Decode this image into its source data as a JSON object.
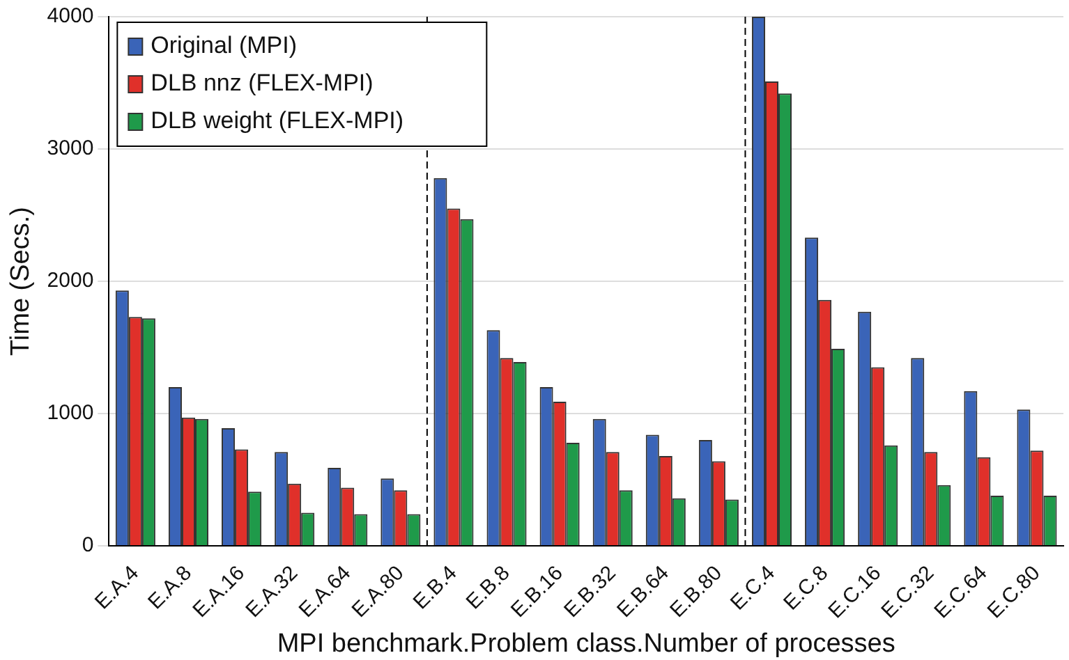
{
  "chart_data": {
    "type": "bar",
    "xlabel": "MPI benchmark.Problem class.Number of processes",
    "ylabel": "Time (Secs.)",
    "categories": [
      "E.A.4",
      "E.A.8",
      "E.A.16",
      "E.A.32",
      "E.A.64",
      "E.A.80",
      "E.B.4",
      "E.B.8",
      "E.B.16",
      "E.B.32",
      "E.B.64",
      "E.B.80",
      "E.C.4",
      "E.C.8",
      "E.C.16",
      "E.C.32",
      "E.C.64",
      "E.C.80"
    ],
    "series": [
      {
        "name": "Original (MPI)",
        "color": "#3a64b8",
        "values": [
          1930,
          1200,
          890,
          710,
          590,
          510,
          2780,
          1630,
          1200,
          960,
          840,
          800,
          4000,
          2330,
          1770,
          1420,
          1170,
          1030
        ]
      },
      {
        "name": "DLB nnz (FLEX-MPI)",
        "color": "#e0302a",
        "values": [
          1730,
          970,
          730,
          470,
          440,
          420,
          2550,
          1420,
          1090,
          710,
          680,
          640,
          3510,
          1860,
          1350,
          710,
          670,
          720
        ]
      },
      {
        "name": "DLB weight (FLEX-MPI)",
        "color": "#1f9a4a",
        "values": [
          1720,
          960,
          410,
          250,
          240,
          240,
          2470,
          1390,
          780,
          420,
          360,
          350,
          3420,
          1490,
          760,
          460,
          380,
          380
        ]
      }
    ],
    "ylim": [
      0,
      4000
    ],
    "yticks": [
      0,
      1000,
      2000,
      3000,
      4000
    ],
    "grid": "y",
    "legend": "top left"
  }
}
